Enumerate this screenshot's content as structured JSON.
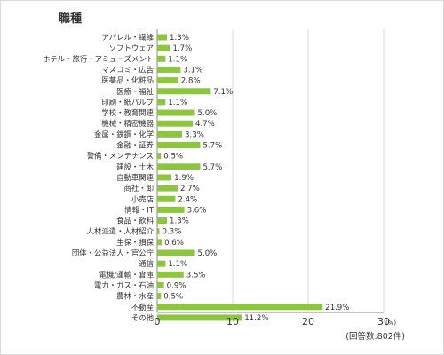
{
  "chart_data": {
    "type": "bar",
    "orientation": "horizontal",
    "title": "職種",
    "categories": [
      "アパレル・繊維",
      "ソフトウェア",
      "ホテル・旅行・アミューズメント",
      "マスコミ・広告",
      "医薬品・化粧品",
      "医療・福祉",
      "印刷・紙パルプ",
      "学校・教育関連",
      "機械・精密機器",
      "金属・鉄鋼・化学",
      "金融・証券",
      "警備・メンテナンス",
      "建設・土木",
      "自動車関連",
      "商社・卸",
      "小売店",
      "情報・IT",
      "食品・飲料",
      "人材派遣・人材紹介",
      "生保・損保",
      "団体・公益法人・官公庁",
      "通信",
      "電機/運輸・倉庫",
      "電力・ガス・石油",
      "農林・水産",
      "不動産",
      "その他"
    ],
    "values": [
      1.3,
      1.7,
      1.1,
      3.1,
      2.8,
      7.1,
      1.1,
      5.0,
      4.7,
      3.3,
      5.7,
      0.5,
      5.7,
      1.9,
      2.7,
      2.4,
      3.6,
      1.3,
      0.3,
      0.6,
      5.0,
      1.1,
      3.5,
      0.9,
      0.5,
      21.9,
      11.2
    ],
    "value_labels": [
      "1.3%",
      "1.7%",
      "1.1%",
      "3.1%",
      "2.8%",
      "7.1%",
      "1.1%",
      "5.0%",
      "4.7%",
      "3.3%",
      "5.7%",
      "0.5%",
      "5.7%",
      "1.9%",
      "2.7%",
      "2.4%",
      "3.6%",
      "1.3%",
      "0.3%",
      "0.6%",
      "5.0%",
      "1.1%",
      "3.5%",
      "0.9%",
      "0.5%",
      "21.9%",
      "11.2%"
    ],
    "xlim": [
      0,
      30
    ],
    "xticks": [
      0,
      10,
      20,
      30
    ],
    "xunit": "(%)",
    "note": "(回答数:802件)",
    "grid": true,
    "bar_color": "#8cc63f",
    "grid_color": "#d9d9d9"
  }
}
